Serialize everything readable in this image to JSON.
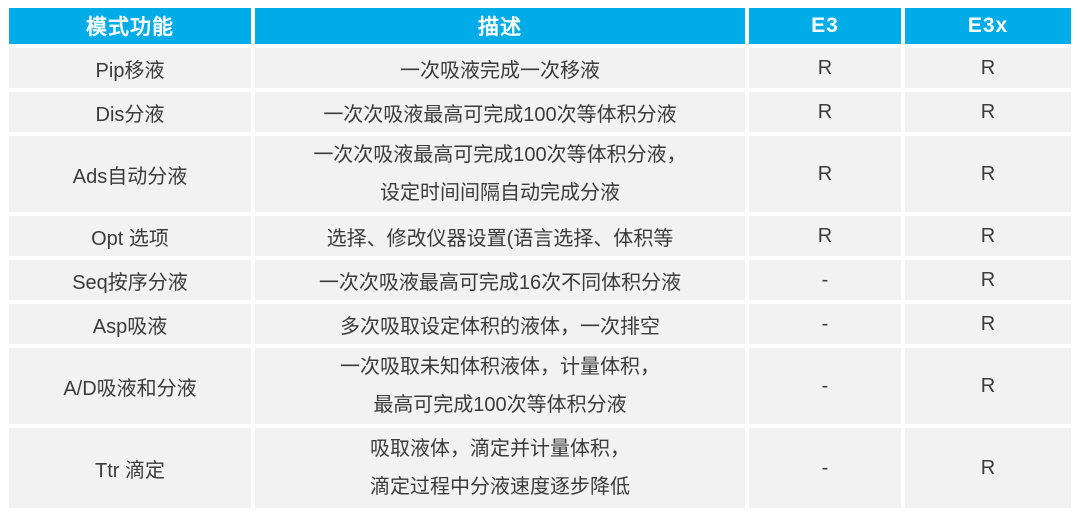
{
  "colors": {
    "header_bg": "#00ACE8",
    "header_text": "#FFFFFF",
    "cell_bg": "#F2F2F2",
    "cell_text": "#3B3B3B",
    "page_bg": "#FFFFFF"
  },
  "table": {
    "headers": {
      "mode": "模式功能",
      "desc": "描述",
      "e3": "E3",
      "e3x": "E3x"
    },
    "rows": [
      {
        "mode": "Pip移液",
        "desc": [
          "一次吸液完成一次移液"
        ],
        "e3": "R",
        "e3x": "R"
      },
      {
        "mode": "Dis分液",
        "desc": [
          "一次次吸液最高可完成100次等体积分液"
        ],
        "e3": "R",
        "e3x": "R"
      },
      {
        "mode": "Ads自动分液",
        "desc": [
          "一次次吸液最高可完成100次等体积分液，",
          "设定时间间隔自动完成分液"
        ],
        "e3": "R",
        "e3x": "R"
      },
      {
        "mode": "Opt 选项",
        "desc": [
          "选择、修改仪器设置(语言选择、体积等"
        ],
        "e3": "R",
        "e3x": "R"
      },
      {
        "mode": "Seq按序分液",
        "desc": [
          "一次次吸液最高可完成16次不同体积分液"
        ],
        "e3": "-",
        "e3x": "R"
      },
      {
        "mode": "Asp吸液",
        "desc": [
          "多次吸取设定体积的液体，一次排空"
        ],
        "e3": "-",
        "e3x": "R"
      },
      {
        "mode": "A/D吸液和分液",
        "desc": [
          "一次吸取未知体积液体，计量体积，",
          "最高可完成100次等体积分液"
        ],
        "e3": "-",
        "e3x": "R"
      },
      {
        "mode": "Ttr 滴定",
        "desc": [
          "吸取液体，滴定并计量体积，",
          "滴定过程中分液速度逐步降低"
        ],
        "e3": "-",
        "e3x": "R"
      }
    ]
  }
}
